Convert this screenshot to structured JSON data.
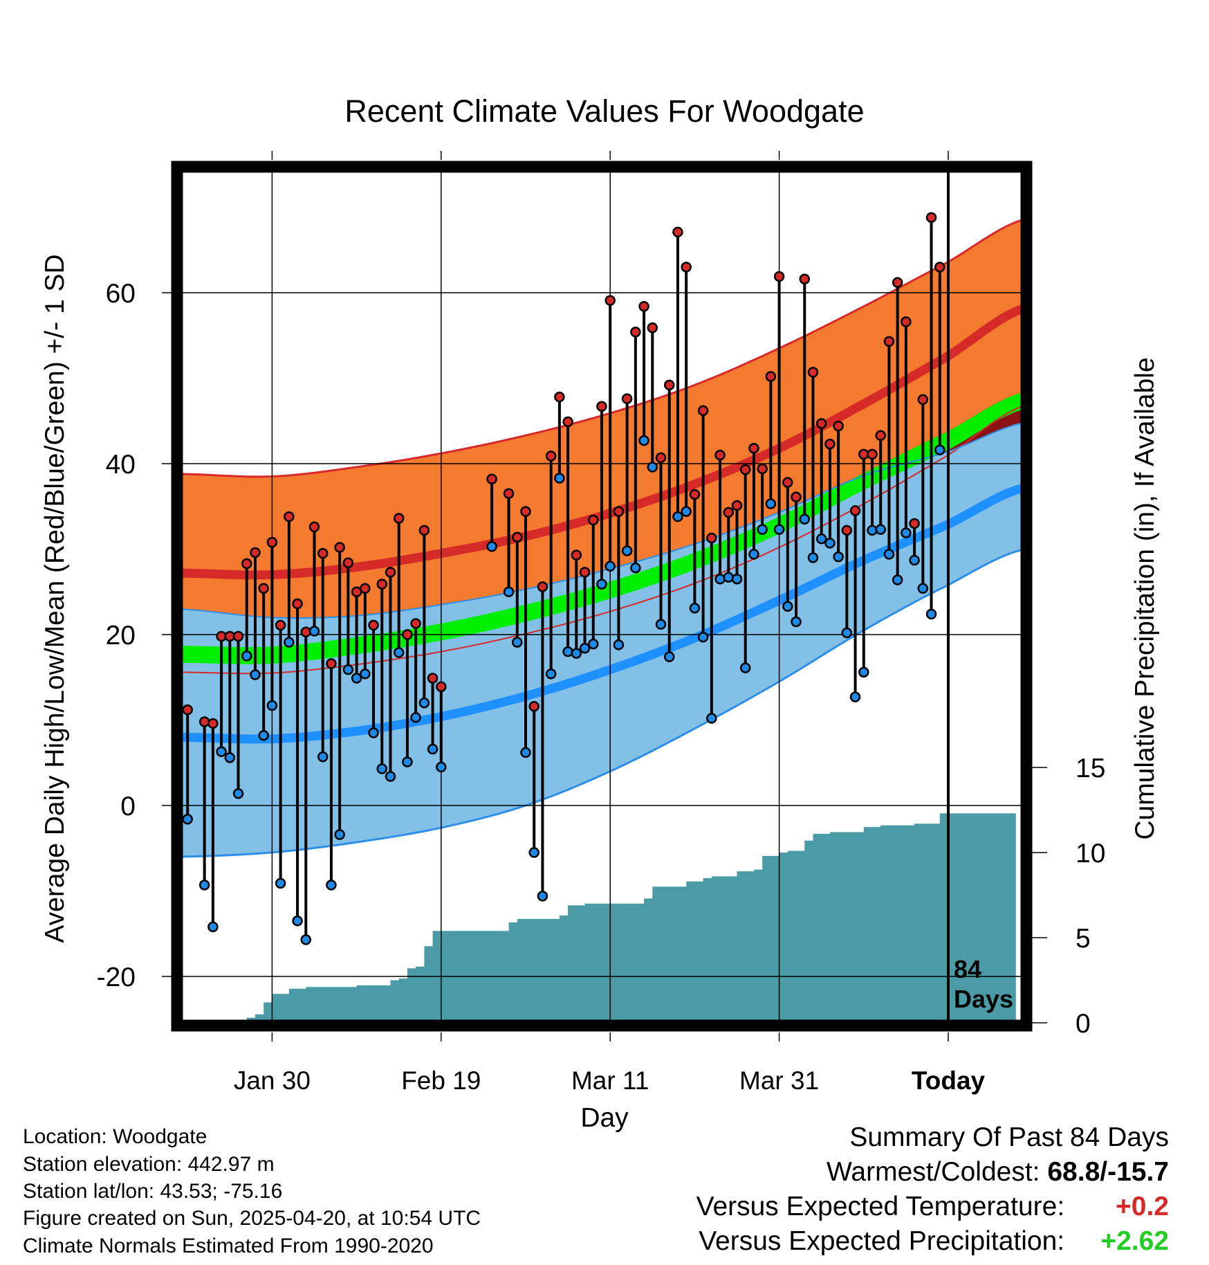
{
  "chart_data": {
    "type": "line",
    "title": "Recent Climate Values For Woodgate",
    "xlabel": "Day",
    "ylabel": "Average Daily High/Low/Mean (Red/Blue/Green) +/- 1 SD",
    "y2label": "Cumulative Precipitation (in), If Available",
    "ylim": [
      -25,
      75
    ],
    "y2lim": [
      0,
      50
    ],
    "yticks": [
      -20,
      0,
      20,
      40,
      60
    ],
    "y2ticks": [
      0,
      5,
      10,
      15
    ],
    "x_range": [
      -91,
      8
    ],
    "x_ticks": [
      {
        "day": -80,
        "label": "Jan 30"
      },
      {
        "day": -60,
        "label": "Feb 19"
      },
      {
        "day": -40,
        "label": "Mar 11"
      },
      {
        "day": -20,
        "label": "Mar 31"
      },
      {
        "day": 0,
        "label": "Today"
      }
    ],
    "today_marker": {
      "label_line1": "84",
      "label_line2": "Days"
    },
    "grid": true,
    "colors": {
      "high_band": "#f47a30",
      "high_edge": "#d7282a",
      "high_mean": "#d62a28",
      "overlap": "#8b1212",
      "mean_band": "#00ee00",
      "low_band": "#82c0e8",
      "low_edge": "#2d8ee8",
      "low_mean": "#1e90ff",
      "precip": "#4a9ba5",
      "high_dot": "#d62a28",
      "low_dot": "#1e8ae6"
    },
    "normals": {
      "days": [
        -91,
        -80,
        -70,
        -60,
        -50,
        -40,
        -30,
        -20,
        -10,
        0,
        9
      ],
      "high_upper": [
        38.8,
        38.5,
        39.6,
        41.2,
        43.3,
        45.9,
        49.2,
        53.5,
        58.4,
        63.6,
        68.6
      ],
      "high_mean": [
        27.2,
        27.0,
        27.9,
        29.5,
        31.5,
        34.2,
        37.6,
        41.8,
        47.0,
        52.6,
        58.2
      ],
      "high_lower": [
        15.6,
        15.5,
        16.5,
        18.0,
        20.1,
        22.7,
        26.0,
        30.2,
        35.3,
        41.0,
        46.8
      ],
      "mean_upper": [
        18.7,
        18.6,
        19.7,
        21.3,
        23.5,
        26.2,
        29.6,
        33.8,
        38.9,
        43.8,
        48.4
      ],
      "mean_lower": [
        16.7,
        16.6,
        17.7,
        19.3,
        21.5,
        24.2,
        27.6,
        31.8,
        36.9,
        41.6,
        46.4
      ],
      "low_upper": [
        23.0,
        22.0,
        22.2,
        23.5,
        25.3,
        27.7,
        30.6,
        34.3,
        38.6,
        41.4,
        44.8
      ],
      "low_mean": [
        8.0,
        7.8,
        8.7,
        10.4,
        12.8,
        15.9,
        19.6,
        24.0,
        28.7,
        32.9,
        37.2
      ],
      "low_lower": [
        -6.0,
        -5.5,
        -4.3,
        -2.6,
        0.0,
        4.0,
        9.0,
        14.5,
        20.5,
        25.8,
        30.0
      ]
    },
    "series": [
      {
        "name": "High",
        "days": [
          -90,
          -88,
          -87,
          -86,
          -85,
          -84,
          -83,
          -82,
          -81,
          -80,
          -79,
          -78,
          -77,
          -76,
          -75,
          -74,
          -73,
          -72,
          -71,
          -70,
          -69,
          -68,
          -67,
          -66,
          -65,
          -64,
          -63,
          -62,
          -61,
          -60,
          -54,
          -52,
          -51,
          -50,
          -49,
          -48,
          -47,
          -46,
          -45,
          -44,
          -43,
          -42,
          -41,
          -40,
          -39,
          -38,
          -37,
          -36,
          -35,
          -34,
          -33,
          -32,
          -31,
          -30,
          -29,
          -28,
          -27,
          -26,
          -25,
          -24,
          -23,
          -22,
          -21,
          -20,
          -19,
          -18,
          -17,
          -16,
          -15,
          -14,
          -13,
          -12,
          -11,
          -10,
          -9,
          -8,
          -7,
          -6,
          -5,
          -4,
          -3,
          -2,
          -1
        ],
        "values": [
          11.2,
          9.8,
          9.6,
          19.8,
          19.8,
          19.8,
          28.3,
          29.6,
          25.4,
          30.8,
          21.1,
          33.8,
          23.6,
          20.3,
          32.6,
          29.5,
          16.6,
          30.2,
          28.4,
          25.0,
          25.4,
          21.1,
          25.9,
          27.3,
          33.6,
          20.0,
          21.3,
          32.2,
          14.9,
          13.9,
          38.2,
          36.5,
          31.4,
          34.4,
          11.6,
          25.6,
          40.9,
          47.8,
          44.9,
          29.3,
          27.3,
          33.4,
          46.7,
          59.1,
          34.4,
          47.6,
          55.4,
          58.4,
          55.9,
          40.7,
          49.2,
          67.1,
          63.0,
          36.4,
          46.2,
          31.3,
          41.0,
          34.3,
          35.1,
          39.3,
          41.8,
          39.4,
          50.2,
          61.9,
          37.8,
          36.1,
          61.6,
          50.7,
          44.7,
          42.3,
          44.4,
          32.2,
          34.5,
          41.1,
          41.1,
          43.3,
          54.3,
          61.2,
          56.6,
          33.0,
          47.5,
          68.8,
          63.0
        ]
      },
      {
        "name": "Low",
        "days": [
          -90,
          -88,
          -87,
          -86,
          -85,
          -84,
          -83,
          -82,
          -81,
          -80,
          -79,
          -78,
          -77,
          -76,
          -75,
          -74,
          -73,
          -72,
          -71,
          -70,
          -69,
          -68,
          -67,
          -66,
          -65,
          -64,
          -63,
          -62,
          -61,
          -60,
          -54,
          -52,
          -51,
          -50,
          -49,
          -48,
          -47,
          -46,
          -45,
          -44,
          -43,
          -42,
          -41,
          -40,
          -39,
          -38,
          -37,
          -36,
          -35,
          -34,
          -33,
          -32,
          -31,
          -30,
          -29,
          -28,
          -27,
          -26,
          -25,
          -24,
          -23,
          -22,
          -21,
          -20,
          -19,
          -18,
          -17,
          -16,
          -15,
          -14,
          -13,
          -12,
          -11,
          -10,
          -9,
          -8,
          -7,
          -6,
          -5,
          -4,
          -3,
          -2,
          -1
        ],
        "values": [
          -1.6,
          -9.3,
          -14.2,
          6.3,
          5.6,
          1.4,
          17.5,
          15.3,
          8.2,
          11.7,
          -9.1,
          19.1,
          -13.5,
          -15.7,
          20.4,
          5.7,
          -9.3,
          -3.4,
          15.9,
          14.9,
          15.4,
          8.5,
          4.3,
          3.4,
          17.9,
          5.1,
          10.3,
          12.0,
          6.6,
          4.5,
          30.3,
          25.0,
          19.1,
          6.2,
          -5.5,
          -10.6,
          15.4,
          38.3,
          18.0,
          17.8,
          18.4,
          18.9,
          25.9,
          28.0,
          18.8,
          29.8,
          27.8,
          42.7,
          39.6,
          21.2,
          17.4,
          33.8,
          34.4,
          23.1,
          19.7,
          10.2,
          26.5,
          26.7,
          26.5,
          16.1,
          29.4,
          32.3,
          35.3,
          32.3,
          23.3,
          21.5,
          33.5,
          29.0,
          31.2,
          30.7,
          29.1,
          20.2,
          12.7,
          15.6,
          32.2,
          32.3,
          29.4,
          26.4,
          31.9,
          28.7,
          25.4,
          22.4,
          41.6
        ]
      },
      {
        "name": "Cumulative Precipitation",
        "days": [
          -83,
          -82,
          -81,
          -80,
          -78,
          -76,
          -70,
          -66,
          -65,
          -64,
          -63,
          -62,
          -61,
          -57,
          -53,
          -52,
          -51,
          -47,
          -46,
          -45,
          -43,
          -38,
          -37,
          -36,
          -35,
          -33,
          -31,
          -29,
          -28,
          -25,
          -24,
          -23,
          -22,
          -20,
          -19,
          -17,
          -16,
          -14,
          -10,
          -8,
          -4,
          -2,
          -1,
          8
        ],
        "values": [
          0.3,
          0.5,
          1.2,
          1.7,
          2.0,
          2.1,
          2.2,
          2.5,
          2.6,
          3.2,
          3.3,
          4.5,
          5.4,
          5.4,
          5.4,
          5.9,
          6.1,
          6.1,
          6.3,
          6.9,
          7.0,
          7.0,
          7.0,
          7.3,
          8.0,
          8.0,
          8.3,
          8.5,
          8.6,
          8.9,
          8.9,
          9.0,
          9.8,
          10.0,
          10.1,
          10.7,
          11.1,
          11.2,
          11.5,
          11.6,
          11.7,
          11.7,
          12.3,
          12.3
        ]
      }
    ]
  },
  "info": {
    "location": "Location: Woodgate",
    "elevation": "Station elevation: 442.97 m",
    "latlon": "Station lat/lon: 43.53; -75.16",
    "created": "Figure created on Sun, 2025-04-20, at 10:54 UTC",
    "normals": "Climate Normals Estimated From 1990-2020"
  },
  "summary": {
    "title": "Summary Of Past 84 Days",
    "extremes_label": "Warmest/Coldest:",
    "extremes_value": "68.8/-15.7",
    "temp_label": "Versus Expected Temperature:",
    "temp_value": "+0.2",
    "temp_color": "#d62a28",
    "precip_label": "Versus Expected Precipitation:",
    "precip_value": "+2.62",
    "precip_color": "#22cc22"
  }
}
